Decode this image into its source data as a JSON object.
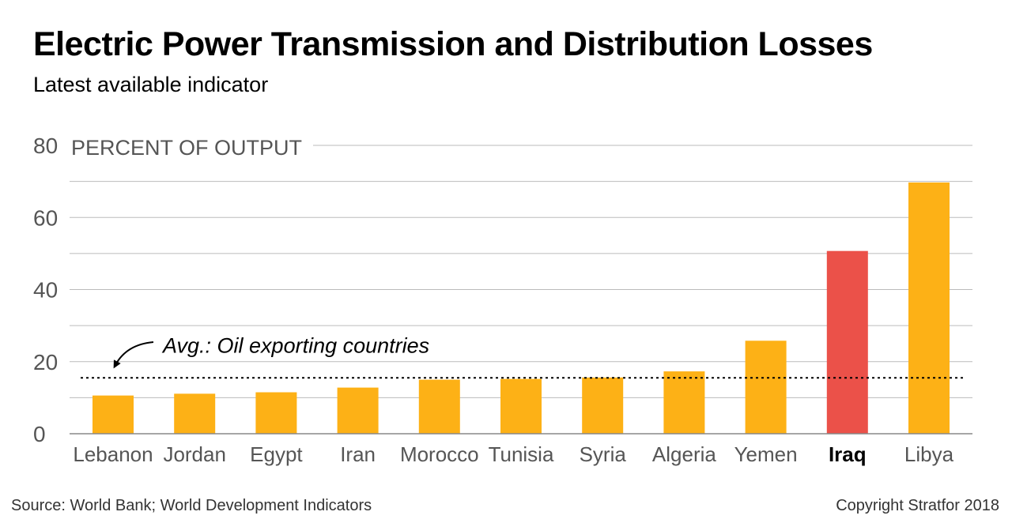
{
  "header": {
    "title": "Electric Power Transmission and Distribution Losses",
    "subtitle": "Latest available indicator"
  },
  "footer": {
    "source": "Source: World Bank; World Development Indicators",
    "copyright": "Copyright Stratfor 2018"
  },
  "colors": {
    "bar": "#FDB116",
    "highlight_bar": "#EB5149",
    "grid": "#bbbbbb",
    "axis_text": "#555555"
  },
  "chart_data": {
    "type": "bar",
    "title": "Electric Power Transmission and Distribution Losses",
    "subtitle": "Latest available indicator",
    "ylabel": "PERCENT OF OUTPUT",
    "xlabel": "",
    "ylim": [
      0,
      80
    ],
    "yticks": [
      0,
      20,
      40,
      60,
      80
    ],
    "grid": true,
    "categories": [
      "Lebanon",
      "Jordan",
      "Egypt",
      "Iran",
      "Morocco",
      "Tunisia",
      "Syria",
      "Algeria",
      "Yemen",
      "Iraq",
      "Libya"
    ],
    "values": [
      10.6,
      11.1,
      11.5,
      12.8,
      15.0,
      15.2,
      15.6,
      17.3,
      25.8,
      50.7,
      69.7
    ],
    "highlight": "Iraq",
    "reference_line": {
      "label": "Avg.: Oil exporting countries",
      "value": 15.5,
      "style": "dotted"
    }
  }
}
